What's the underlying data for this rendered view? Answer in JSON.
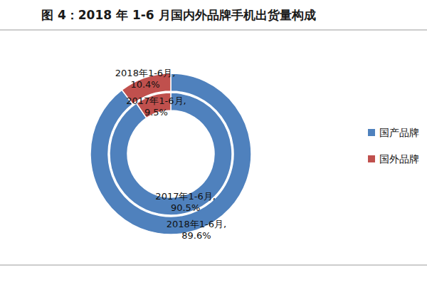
{
  "chart_data": {
    "type": "pie",
    "title": "图 4：2018 年 1-6 月国内外品牌手机出货量构成",
    "categories": [
      "国产品牌",
      "国外品牌"
    ],
    "colors": [
      "#4f81bd",
      "#c0504d"
    ],
    "series": [
      {
        "values": [
          89.6,
          10.4
        ],
        "value_labels": [
          [
            "2018年1-6月,",
            "89.6%"
          ],
          [
            "2018年1-6月,",
            "10.4%"
          ]
        ]
      },
      {
        "values": [
          90.5,
          9.5
        ],
        "value_labels": [
          [
            "2017年1-6月,",
            "90.5%"
          ],
          [
            "2017年1-6月,",
            "9.5%"
          ]
        ]
      }
    ],
    "data_labels": true,
    "legend": "right"
  }
}
